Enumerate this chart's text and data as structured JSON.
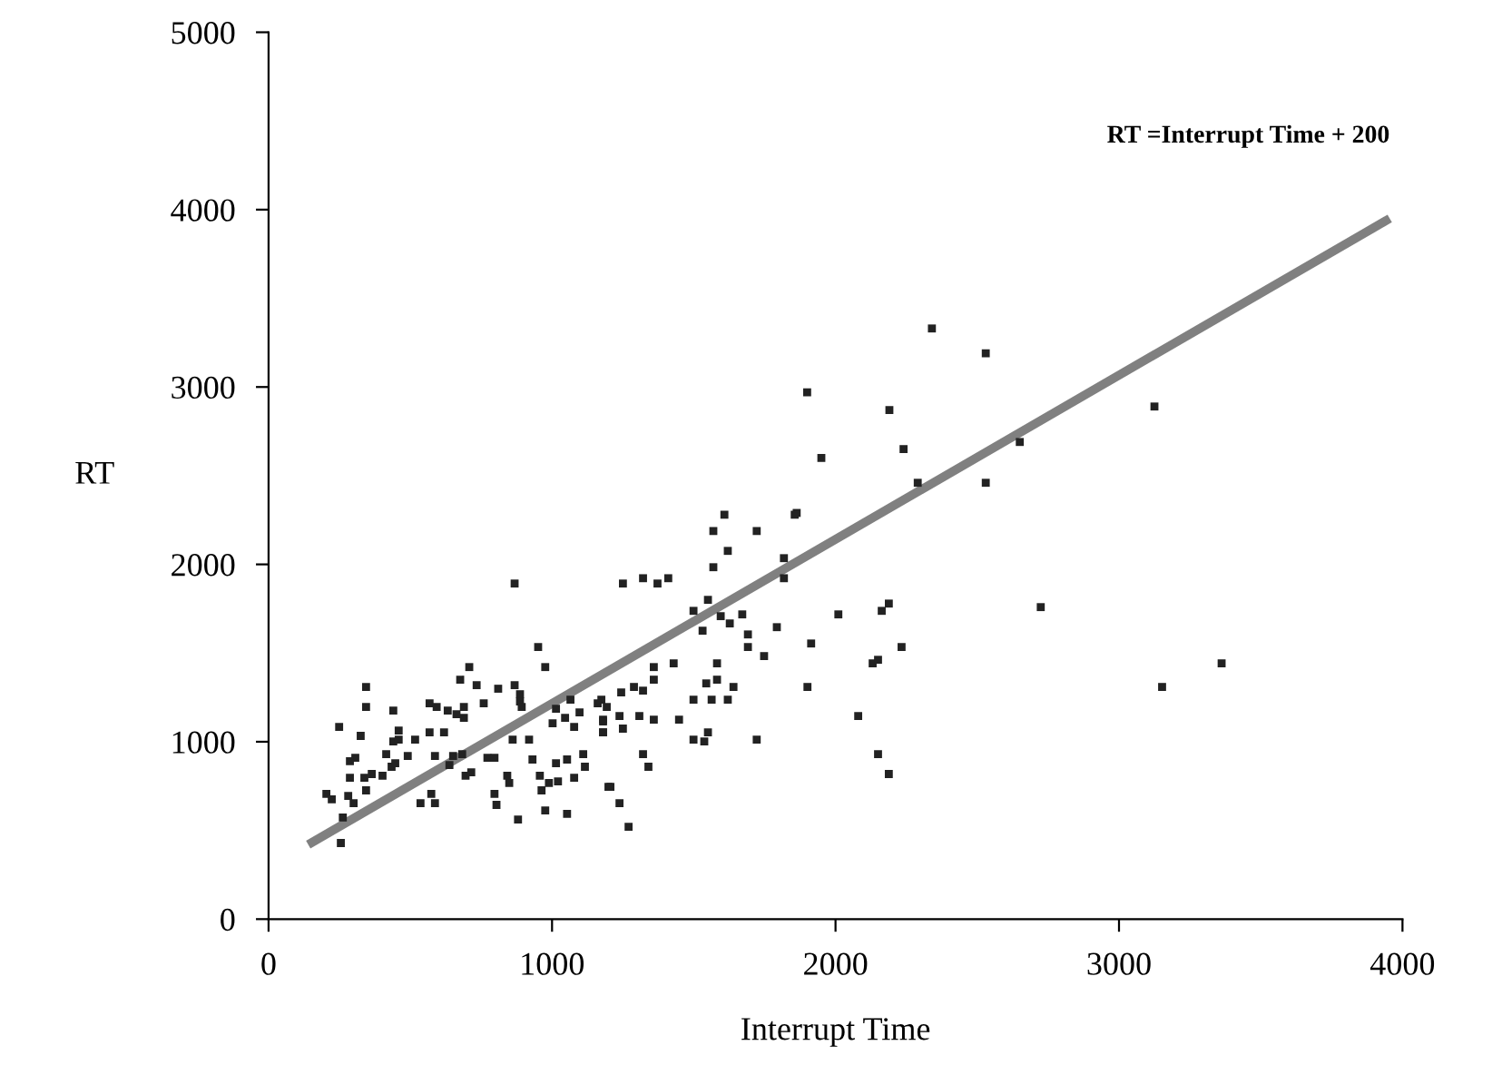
{
  "chart_data": {
    "type": "scatter",
    "xlabel": "Interrupt Time",
    "ylabel": "RT",
    "xlim": [
      0,
      4000
    ],
    "xticks": [
      0,
      1000,
      2000,
      3000,
      4000
    ],
    "ylim": [
      0,
      5000
    ],
    "yticks": [
      0,
      1000,
      2000,
      3000,
      4000,
      5000
    ],
    "grid": false,
    "series": [
      {
        "color": "#222222",
        "marker": "square",
        "x": [
          2340,
          2530,
          1900,
          2190,
          1950,
          2240,
          3125,
          2650,
          2290,
          2530,
          1863,
          2188,
          2163,
          2010,
          2724,
          1914,
          2233,
          2131,
          2150,
          1901,
          3152,
          3362,
          2080,
          2150,
          2188,
          1608,
          1856,
          1569,
          1722,
          1620,
          1569,
          1818,
          1818,
          1250,
          1321,
          1372,
          1410,
          1550,
          1499,
          1595,
          1627,
          1671,
          1531,
          1691,
          1793,
          1691,
          1748,
          1429,
          1359,
          1582,
          1359,
          1544,
          1582,
          1640,
          1244,
          1289,
          1321,
          1174,
          1193,
          1499,
          1563,
          1620,
          1238,
          1308,
          1359,
          1448,
          1180,
          1180,
          1250,
          1550,
          1499,
          1537,
          1722,
          1321,
          1340,
          1199,
          1238,
          1270,
          868,
          951,
          976,
          708,
          676,
          734,
          810,
          868,
          887,
          344,
          344,
          440,
          568,
          593,
          632,
          663,
          689,
          759,
          689,
          568,
          619,
          887,
          893,
          1014,
          1046,
          1078,
          1002,
          1065,
          1097,
          1161,
          1180,
          1180,
          249,
          325,
          459,
          440,
          459,
          517,
          491,
          587,
          651,
          683,
          638,
          306,
          287,
          415,
          434,
          447,
          287,
          338,
          364,
          402,
          344,
          204,
          223,
          281,
          300,
          262,
          255,
          536,
          574,
          587,
          695,
          715,
          772,
          842,
          849,
          797,
          804,
          880,
          919,
          931,
          957,
          989,
          963,
          976,
          1053,
          1014,
          1021,
          1053,
          1110,
          1116,
          1078,
          1206,
          861,
          797
        ],
        "values": [
          3330,
          3190,
          2970,
          2870,
          2600,
          2650,
          2890,
          2690,
          2460,
          2460,
          2290,
          1779,
          1738,
          1718,
          1759,
          1554,
          1534,
          1442,
          1462,
          1309,
          1309,
          1442,
          1145,
          930,
          818,
          2280,
          2280,
          2188,
          2188,
          2076,
          1984,
          2035,
          1922,
          1892,
          1922,
          1892,
          1922,
          1800,
          1738,
          1708,
          1667,
          1718,
          1626,
          1605,
          1646,
          1534,
          1483,
          1442,
          1421,
          1442,
          1350,
          1329,
          1350,
          1309,
          1278,
          1309,
          1288,
          1237,
          1196,
          1237,
          1237,
          1237,
          1145,
          1145,
          1125,
          1125,
          1125,
          1053,
          1074,
          1053,
          1012,
          1002,
          1012,
          930,
          859,
          746,
          654,
          521,
          1892,
          1534,
          1421,
          1421,
          1350,
          1319,
          1299,
          1319,
          1268,
          1309,
          1196,
          1176,
          1217,
          1196,
          1176,
          1155,
          1196,
          1217,
          1135,
          1053,
          1053,
          1227,
          1196,
          1186,
          1135,
          1084,
          1104,
          1237,
          1166,
          1217,
          1114,
          1053,
          1084,
          1033,
          1063,
          1002,
          1012,
          1012,
          920,
          920,
          920,
          930,
          869,
          910,
          890,
          930,
          859,
          879,
          797,
          797,
          818,
          808,
          726,
          706,
          675,
          695,
          654,
          573,
          429,
          654,
          706,
          654,
          808,
          828,
          910,
          808,
          767,
          706,
          644,
          562,
          1012,
          900,
          808,
          767,
          726,
          613,
          593,
          879,
          777,
          900,
          930,
          859,
          797,
          746,
          1012,
          910
        ]
      },
      {
        "type": "line",
        "name": "RT =Interrupt Time + 200",
        "color": "#808080",
        "x": [
          140,
          3955
        ],
        "values": [
          420,
          3950
        ]
      }
    ]
  }
}
